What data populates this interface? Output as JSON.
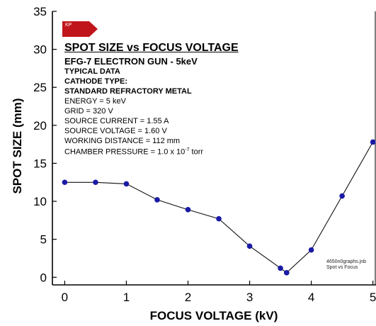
{
  "logo": {
    "label": "KP",
    "color": "#c0161b"
  },
  "chart_data": {
    "type": "line",
    "title": "SPOT SIZE vs FOCUS VOLTAGE",
    "subtitle": "EFG-7 ELECTRON GUN - 5keV",
    "xlabel": "FOCUS VOLTAGE (kV)",
    "ylabel": "SPOT SIZE (mm)",
    "xlim": [
      -0.2,
      5.05
    ],
    "ylim": [
      -1,
      35
    ],
    "xticks": [
      0,
      1,
      2,
      3,
      4,
      5
    ],
    "yticks": [
      0,
      5,
      10,
      15,
      20,
      25,
      30,
      35
    ],
    "grid": false,
    "series": [
      {
        "color": "#1a1aa6",
        "x": [
          0,
          0.5,
          1,
          1.5,
          2,
          2.5,
          3,
          3.5,
          3.6,
          4,
          4.5,
          5
        ],
        "y": [
          12.5,
          12.5,
          12.3,
          10.2,
          8.9,
          7.7,
          4.1,
          1.2,
          0.6,
          3.6,
          10.7,
          17.8
        ]
      }
    ],
    "info": {
      "typical": "TYPICAL DATA",
      "cathode_label": "CATHODE TYPE:",
      "cathode": "STANDARD REFRACTORY METAL",
      "energy": "ENERGY = 5 keV",
      "grid": "GRID = 320 V",
      "source_current": "SOURCE CURRENT = 1.55 A",
      "source_voltage": "SOURCE VOLTAGE = 1.60 V",
      "working_distance": "WORKING DISTANCE =  112 mm",
      "pressure_prefix": "CHAMBER PRESSURE = 1.0 x 10",
      "pressure_exp": "-7",
      "pressure_unit": " torr"
    },
    "filenote": [
      "4650n0graphs.jnb",
      "Spot vs Focus"
    ]
  }
}
